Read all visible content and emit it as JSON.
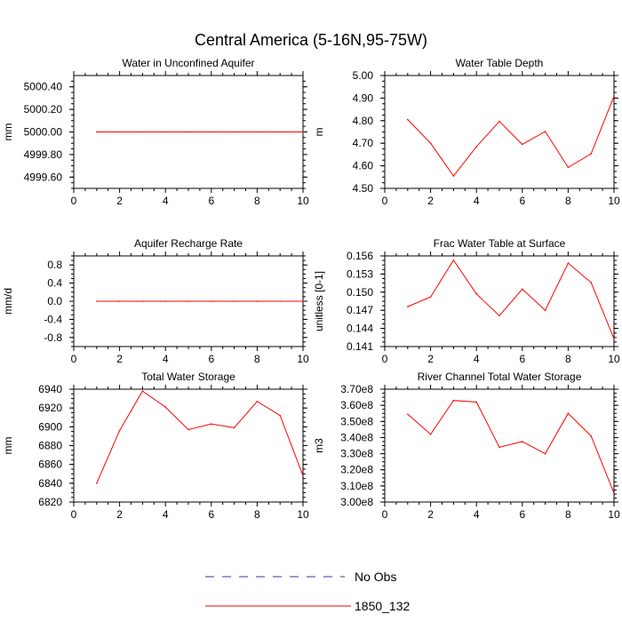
{
  "figure": {
    "title": "Central America (5-16N,95-75W)",
    "legend": [
      {
        "label": "No Obs",
        "color": "#3333aa",
        "style": "dashed"
      },
      {
        "label": "1850_132",
        "color": "#ff0000",
        "style": "solid"
      }
    ]
  },
  "chart_data": [
    {
      "type": "line",
      "title": "Water in Unconfined Aquifer",
      "ylabel": "mm",
      "xlim": [
        0,
        10
      ],
      "xticks": [
        0,
        2,
        4,
        6,
        8,
        10
      ],
      "ylim": [
        4999.5,
        5000.5
      ],
      "yticks": [
        4999.6,
        4999.8,
        5000.0,
        5000.2,
        5000.4
      ],
      "ytick_labels": [
        "4999.60",
        "4999.80",
        "5000.00",
        "5000.20",
        "5000.40"
      ],
      "x": [
        1,
        2,
        3,
        4,
        5,
        6,
        7,
        8,
        9,
        10
      ],
      "series": [
        {
          "name": "1850_132",
          "color": "#ff0000",
          "values": [
            5000,
            5000,
            5000,
            5000,
            5000,
            5000,
            5000,
            5000,
            5000,
            5000
          ]
        }
      ]
    },
    {
      "type": "line",
      "title": "Water Table Depth",
      "ylabel": "m",
      "xlim": [
        0,
        10
      ],
      "xticks": [
        0,
        2,
        4,
        6,
        8,
        10
      ],
      "ylim": [
        4.5,
        5.0
      ],
      "yticks": [
        4.5,
        4.6,
        4.7,
        4.8,
        4.9,
        5.0
      ],
      "ytick_labels": [
        "4.50",
        "4.60",
        "4.70",
        "4.80",
        "4.90",
        "5.00"
      ],
      "x": [
        1,
        2,
        3,
        4,
        5,
        6,
        7,
        8,
        9,
        10
      ],
      "series": [
        {
          "name": "1850_132",
          "color": "#ff0000",
          "values": [
            4.805,
            4.7,
            4.555,
            4.685,
            4.797,
            4.695,
            4.752,
            4.593,
            4.653,
            4.908
          ]
        }
      ]
    },
    {
      "type": "line",
      "title": "Aquifer Recharge Rate",
      "ylabel": "mm/d",
      "xlim": [
        0,
        10
      ],
      "xticks": [
        0,
        2,
        4,
        6,
        8,
        10
      ],
      "ylim": [
        -1.0,
        1.0
      ],
      "yticks": [
        -0.8,
        -0.4,
        0.0,
        0.4,
        0.8
      ],
      "ytick_labels": [
        "-0.8",
        "-0.4",
        "0.0",
        "0.4",
        "0.8"
      ],
      "x": [
        1,
        2,
        3,
        4,
        5,
        6,
        7,
        8,
        9,
        10
      ],
      "series": [
        {
          "name": "1850_132",
          "color": "#ff0000",
          "values": [
            0,
            0,
            0,
            0,
            0,
            0,
            0,
            0,
            0,
            0
          ]
        }
      ]
    },
    {
      "type": "line",
      "title": "Frac Water Table at Surface",
      "ylabel": "unitless [0-1]",
      "xlim": [
        0,
        10
      ],
      "xticks": [
        0,
        2,
        4,
        6,
        8,
        10
      ],
      "ylim": [
        0.141,
        0.156
      ],
      "yticks": [
        0.141,
        0.144,
        0.147,
        0.15,
        0.153,
        0.156
      ],
      "ytick_labels": [
        "0.141",
        "0.144",
        "0.147",
        "0.150",
        "0.153",
        "0.156"
      ],
      "x": [
        1,
        2,
        3,
        4,
        5,
        6,
        7,
        8,
        9,
        10
      ],
      "series": [
        {
          "name": "1850_132",
          "color": "#ff0000",
          "values": [
            0.1476,
            0.1492,
            0.1553,
            0.1497,
            0.1461,
            0.1505,
            0.147,
            0.1548,
            0.1516,
            0.1423
          ]
        }
      ]
    },
    {
      "type": "line",
      "title": "Total Water Storage",
      "ylabel": "mm",
      "xlim": [
        0,
        10
      ],
      "xticks": [
        0,
        2,
        4,
        6,
        8,
        10
      ],
      "ylim": [
        6820,
        6940
      ],
      "yticks": [
        6820,
        6840,
        6860,
        6880,
        6900,
        6920,
        6940
      ],
      "ytick_labels": [
        "6820",
        "6840",
        "6860",
        "6880",
        "6900",
        "6920",
        "6940"
      ],
      "x": [
        1,
        2,
        3,
        4,
        5,
        6,
        7,
        8,
        9,
        10
      ],
      "series": [
        {
          "name": "1850_132",
          "color": "#ff0000",
          "values": [
            6840,
            6896,
            6938,
            6921,
            6897,
            6903,
            6899,
            6927,
            6912,
            6848
          ]
        }
      ]
    },
    {
      "type": "line",
      "title": "River Channel Total Water Storage",
      "ylabel": "m3",
      "xlim": [
        0,
        10
      ],
      "xticks": [
        0,
        2,
        4,
        6,
        8,
        10
      ],
      "ylim": [
        300000000,
        370000000
      ],
      "yticks": [
        300000000,
        310000000,
        320000000,
        330000000,
        340000000,
        350000000,
        360000000,
        370000000
      ],
      "ytick_labels": [
        "3.00e8",
        "3.10e8",
        "3.20e8",
        "3.30e8",
        "3.40e8",
        "3.50e8",
        "3.60e8",
        "3.70e8"
      ],
      "x": [
        1,
        2,
        3,
        4,
        5,
        6,
        7,
        8,
        9,
        10
      ],
      "series": [
        {
          "name": "1850_132",
          "color": "#ff0000",
          "values": [
            354500000,
            342000000,
            363000000,
            362000000,
            334000000,
            337500000,
            330000000,
            355000000,
            341000000,
            305500000
          ]
        }
      ]
    }
  ]
}
